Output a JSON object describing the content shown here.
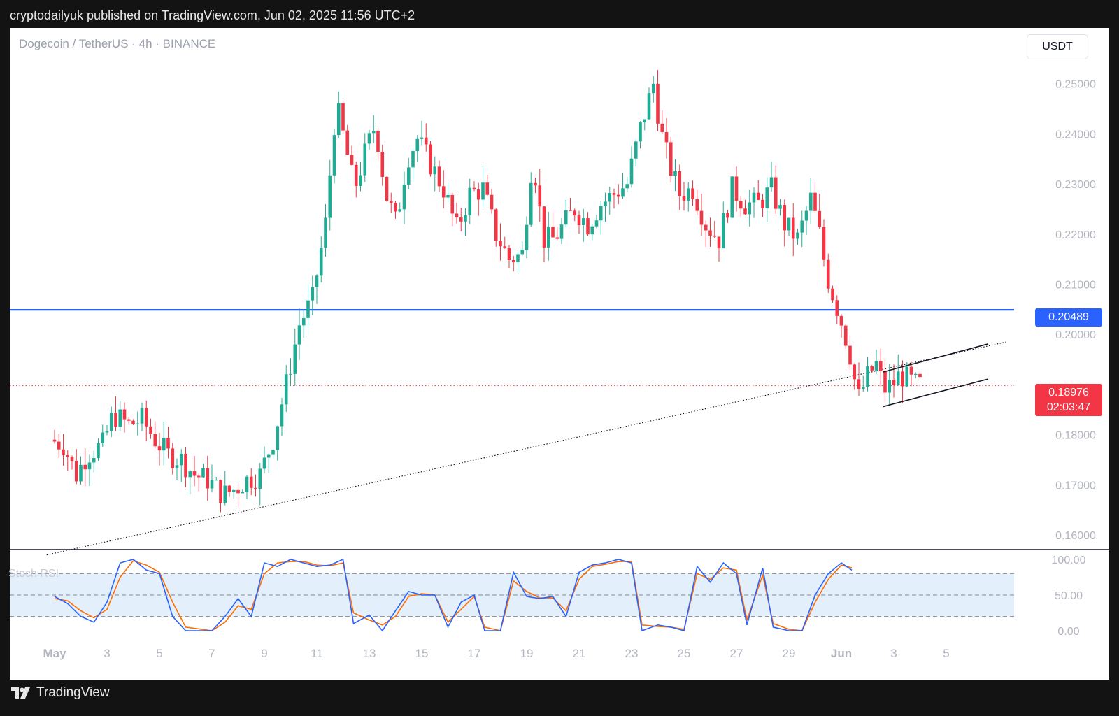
{
  "header": {
    "published": "cryptodailyuk published on TradingView.com, Jun 02, 2025 11:56 UTC+2"
  },
  "symbol": "Dogecoin / TetherUS · 4h · BINANCE",
  "currency_button": "USDT",
  "indicator_label": "Stoch RSI",
  "level_tag": "0.20489",
  "price_tag": {
    "price": "0.18976",
    "countdown": "02:03:47"
  },
  "brand": "TradingView",
  "colors": {
    "up": "#22ab94",
    "down": "#f23645",
    "level": "#2962ff",
    "k_line": "#2962ff",
    "d_line": "#ff6d00",
    "band": "#e3f0fb"
  },
  "chart_data": {
    "type": "candlestick",
    "ylim": [
      0.156,
      0.258
    ],
    "yticks": [
      0.16,
      0.17,
      0.18,
      0.19,
      0.2,
      0.21,
      0.22,
      0.23,
      0.24,
      0.25
    ],
    "ytick_labels": [
      "0.16000",
      "0.17000",
      "0.18000",
      "0.20000",
      "0.21000",
      "0.22000",
      "0.23000",
      "0.24000",
      "0.25000"
    ],
    "xtick_labels": [
      "May",
      "3",
      "5",
      "7",
      "9",
      "11",
      "13",
      "15",
      "17",
      "19",
      "21",
      "23",
      "25",
      "27",
      "29",
      "Jun",
      "3",
      "5"
    ],
    "xlim_days": [
      0,
      38.5
    ],
    "horizontal_level": 0.20489,
    "last_price": 0.18976,
    "price_path": [
      [
        0,
        0.179
      ],
      [
        0.5,
        0.178
      ],
      [
        1,
        0.172
      ],
      [
        1.4,
        0.176
      ],
      [
        2,
        0.178
      ],
      [
        2.4,
        0.184
      ],
      [
        3,
        0.182
      ],
      [
        3.5,
        0.183
      ],
      [
        4,
        0.179
      ],
      [
        4.5,
        0.176
      ],
      [
        5,
        0.175
      ],
      [
        5.5,
        0.172
      ],
      [
        6,
        0.171
      ],
      [
        6.6,
        0.168
      ],
      [
        7,
        0.169
      ],
      [
        7.5,
        0.171
      ],
      [
        8,
        0.172
      ],
      [
        8.5,
        0.179
      ],
      [
        9,
        0.19
      ],
      [
        9.5,
        0.202
      ],
      [
        10,
        0.207
      ],
      [
        10.5,
        0.222
      ],
      [
        10.9,
        0.246
      ],
      [
        11.2,
        0.239
      ],
      [
        11.6,
        0.229
      ],
      [
        12,
        0.236
      ],
      [
        12.4,
        0.242
      ],
      [
        12.8,
        0.228
      ],
      [
        13.2,
        0.222
      ],
      [
        13.6,
        0.235
      ],
      [
        14,
        0.239
      ],
      [
        14.5,
        0.234
      ],
      [
        15,
        0.229
      ],
      [
        15.5,
        0.221
      ],
      [
        16,
        0.228
      ],
      [
        16.5,
        0.229
      ],
      [
        17,
        0.22
      ],
      [
        17.5,
        0.215
      ],
      [
        18,
        0.216
      ],
      [
        18.4,
        0.236
      ],
      [
        18.8,
        0.219
      ],
      [
        19.2,
        0.219
      ],
      [
        19.6,
        0.222
      ],
      [
        20,
        0.225
      ],
      [
        20.5,
        0.222
      ],
      [
        21,
        0.226
      ],
      [
        21.5,
        0.228
      ],
      [
        22,
        0.23
      ],
      [
        22.5,
        0.241
      ],
      [
        23,
        0.25
      ],
      [
        23.3,
        0.24
      ],
      [
        23.6,
        0.234
      ],
      [
        24,
        0.228
      ],
      [
        24.5,
        0.229
      ],
      [
        25,
        0.222
      ],
      [
        25.5,
        0.219
      ],
      [
        26,
        0.229
      ],
      [
        26.5,
        0.226
      ],
      [
        27,
        0.226
      ],
      [
        27.5,
        0.229
      ],
      [
        28,
        0.222
      ],
      [
        28.5,
        0.219
      ],
      [
        29,
        0.227
      ],
      [
        29.3,
        0.221
      ],
      [
        29.6,
        0.212
      ],
      [
        29.9,
        0.207
      ],
      [
        30.2,
        0.202
      ],
      [
        30.5,
        0.196
      ],
      [
        30.8,
        0.187
      ],
      [
        31.2,
        0.192
      ],
      [
        31.5,
        0.194
      ],
      [
        31.8,
        0.189
      ],
      [
        32.1,
        0.19
      ],
      [
        32.4,
        0.192
      ],
      [
        32.7,
        0.191
      ],
      [
        33,
        0.19
      ]
    ],
    "trendline_points": [
      [
        -0.3,
        0.156
      ],
      [
        36.3,
        0.1985
      ]
    ],
    "channel_upper": [
      [
        31.6,
        0.1925
      ],
      [
        35.6,
        0.1981
      ]
    ],
    "channel_lower": [
      [
        31.6,
        0.1856
      ],
      [
        35.6,
        0.1911
      ]
    ],
    "stoch_rsi": {
      "ylim": [
        0,
        100
      ],
      "ytick_labels": [
        "100.00",
        "50.00",
        "0.00"
      ],
      "band": [
        20,
        80
      ],
      "k": [
        [
          0,
          48
        ],
        [
          0.5,
          38
        ],
        [
          1,
          20
        ],
        [
          1.5,
          12
        ],
        [
          2,
          40
        ],
        [
          2.5,
          95
        ],
        [
          3,
          100
        ],
        [
          3.5,
          85
        ],
        [
          4,
          80
        ],
        [
          4.5,
          20
        ],
        [
          5,
          0
        ],
        [
          6,
          0
        ],
        [
          6.5,
          20
        ],
        [
          7,
          45
        ],
        [
          7.5,
          20
        ],
        [
          8,
          95
        ],
        [
          8.5,
          90
        ],
        [
          9,
          100
        ],
        [
          9.5,
          95
        ],
        [
          10,
          90
        ],
        [
          10.5,
          92
        ],
        [
          11,
          100
        ],
        [
          11.4,
          10
        ],
        [
          12,
          22
        ],
        [
          12.5,
          0
        ],
        [
          13,
          28
        ],
        [
          13.5,
          55
        ],
        [
          14,
          50
        ],
        [
          14.5,
          50
        ],
        [
          15,
          5
        ],
        [
          15.5,
          40
        ],
        [
          16,
          50
        ],
        [
          16.4,
          0
        ],
        [
          17,
          0
        ],
        [
          17.5,
          82
        ],
        [
          18,
          48
        ],
        [
          18.5,
          45
        ],
        [
          19,
          48
        ],
        [
          19.5,
          20
        ],
        [
          20,
          82
        ],
        [
          20.5,
          92
        ],
        [
          21,
          95
        ],
        [
          21.5,
          100
        ],
        [
          22,
          95
        ],
        [
          22.4,
          0
        ],
        [
          23,
          8
        ],
        [
          23.5,
          5
        ],
        [
          24,
          0
        ],
        [
          24.5,
          90
        ],
        [
          25,
          68
        ],
        [
          25.5,
          95
        ],
        [
          26,
          80
        ],
        [
          26.4,
          8
        ],
        [
          27,
          88
        ],
        [
          27.4,
          5
        ],
        [
          28,
          0
        ],
        [
          28.5,
          0
        ],
        [
          29,
          50
        ],
        [
          29.5,
          80
        ],
        [
          30,
          95
        ],
        [
          30.4,
          85
        ]
      ],
      "d": [
        [
          0,
          45
        ],
        [
          0.5,
          42
        ],
        [
          1,
          28
        ],
        [
          1.5,
          18
        ],
        [
          2,
          30
        ],
        [
          2.5,
          75
        ],
        [
          3,
          98
        ],
        [
          3.5,
          92
        ],
        [
          4,
          82
        ],
        [
          4.5,
          40
        ],
        [
          5,
          5
        ],
        [
          6,
          0
        ],
        [
          6.5,
          12
        ],
        [
          7,
          35
        ],
        [
          7.5,
          30
        ],
        [
          8,
          80
        ],
        [
          8.5,
          95
        ],
        [
          9,
          97
        ],
        [
          9.5,
          97
        ],
        [
          10,
          92
        ],
        [
          10.5,
          91
        ],
        [
          11,
          95
        ],
        [
          11.4,
          25
        ],
        [
          12,
          15
        ],
        [
          12.5,
          8
        ],
        [
          13,
          20
        ],
        [
          13.5,
          48
        ],
        [
          14,
          52
        ],
        [
          14.5,
          50
        ],
        [
          15,
          12
        ],
        [
          15.5,
          30
        ],
        [
          16,
          48
        ],
        [
          16.4,
          5
        ],
        [
          17,
          0
        ],
        [
          17.5,
          70
        ],
        [
          18,
          55
        ],
        [
          18.5,
          46
        ],
        [
          19,
          46
        ],
        [
          19.5,
          28
        ],
        [
          20,
          72
        ],
        [
          20.5,
          90
        ],
        [
          21,
          93
        ],
        [
          21.5,
          97
        ],
        [
          22,
          97
        ],
        [
          22.4,
          8
        ],
        [
          23,
          6
        ],
        [
          23.5,
          5
        ],
        [
          24,
          2
        ],
        [
          24.5,
          80
        ],
        [
          25,
          72
        ],
        [
          25.5,
          88
        ],
        [
          26,
          85
        ],
        [
          26.4,
          15
        ],
        [
          27,
          78
        ],
        [
          27.4,
          10
        ],
        [
          28,
          2
        ],
        [
          28.5,
          0
        ],
        [
          29,
          40
        ],
        [
          29.5,
          72
        ],
        [
          30,
          92
        ],
        [
          30.4,
          88
        ]
      ]
    }
  }
}
